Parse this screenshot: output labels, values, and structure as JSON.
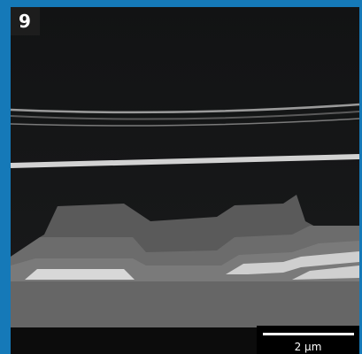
{
  "panel_label": "9",
  "scale_bar": {
    "label": "2 μm"
  }
}
